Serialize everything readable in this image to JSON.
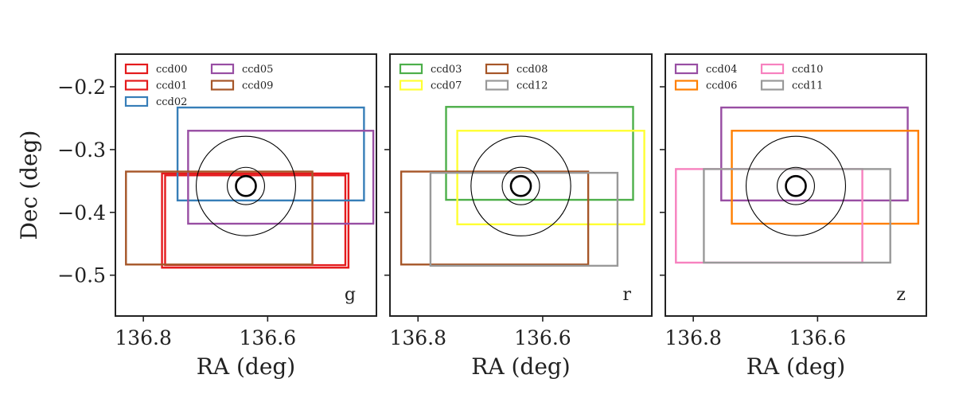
{
  "chart_data": [
    {
      "type": "scatter",
      "panel": "g",
      "band_label": "g",
      "xlabel": "RA (deg)",
      "ylabel": "Dec (deg)",
      "xlim": [
        136.845,
        136.425
      ],
      "ylim": [
        -0.565,
        -0.148
      ],
      "x_ticks": [
        136.8,
        136.6
      ],
      "x_tick_labels": [
        "136.8",
        "136.6"
      ],
      "y_ticks": [
        -0.2,
        -0.3,
        -0.4,
        -0.5
      ],
      "y_tick_labels": [
        "−0.2",
        "−0.3",
        "−0.4",
        "−0.5"
      ],
      "target": {
        "ra": 136.635,
        "dec": -0.358,
        "circle_radii_deg": [
          0.016,
          0.03,
          0.08
        ]
      },
      "legend": {
        "placement": "top-left",
        "columns": 2,
        "entries": [
          "ccd00",
          "ccd01",
          "ccd02",
          "ccd05",
          "ccd09"
        ]
      },
      "series": [
        {
          "name": "ccd00",
          "color": "#e41a1c",
          "ra": [
            136.77,
            136.47
          ],
          "dec": [
            -0.488,
            -0.338
          ]
        },
        {
          "name": "ccd01",
          "color": "#e41a1c",
          "ra": [
            136.765,
            136.475
          ],
          "dec": [
            -0.484,
            -0.341
          ]
        },
        {
          "name": "ccd02",
          "color": "#377eb8",
          "ra": [
            136.745,
            136.445
          ],
          "dec": [
            -0.381,
            -0.233
          ]
        },
        {
          "name": "ccd05",
          "color": "#984ea3",
          "ra": [
            136.728,
            136.43
          ],
          "dec": [
            -0.418,
            -0.27
          ]
        },
        {
          "name": "ccd09",
          "color": "#a65628",
          "ra": [
            136.828,
            136.528
          ],
          "dec": [
            -0.483,
            -0.335
          ]
        }
      ]
    },
    {
      "type": "scatter",
      "panel": "r",
      "band_label": "r",
      "xlabel": "RA (deg)",
      "ylabel": "",
      "xlim": [
        136.845,
        136.425
      ],
      "ylim": [
        -0.565,
        -0.148
      ],
      "x_ticks": [
        136.8,
        136.6
      ],
      "x_tick_labels": [
        "136.8",
        "136.6"
      ],
      "y_ticks": [
        -0.2,
        -0.3,
        -0.4,
        -0.5
      ],
      "y_tick_labels": [],
      "target": {
        "ra": 136.635,
        "dec": -0.358,
        "circle_radii_deg": [
          0.016,
          0.03,
          0.08
        ]
      },
      "legend": {
        "placement": "top-left",
        "columns": 2,
        "entries": [
          "ccd03",
          "ccd07",
          "ccd08",
          "ccd12"
        ]
      },
      "series": [
        {
          "name": "ccd03",
          "color": "#4daf4a",
          "ra": [
            136.755,
            136.455
          ],
          "dec": [
            -0.38,
            -0.232
          ]
        },
        {
          "name": "ccd07",
          "color": "#ffff33",
          "ra": [
            136.737,
            136.437
          ],
          "dec": [
            -0.419,
            -0.27
          ]
        },
        {
          "name": "ccd08",
          "color": "#a65628",
          "ra": [
            136.827,
            136.527
          ],
          "dec": [
            -0.483,
            -0.335
          ]
        },
        {
          "name": "ccd12",
          "color": "#999999",
          "ra": [
            136.78,
            136.48
          ],
          "dec": [
            -0.485,
            -0.337
          ]
        }
      ]
    },
    {
      "type": "scatter",
      "panel": "z",
      "band_label": "z",
      "xlabel": "RA (deg)",
      "ylabel": "",
      "xlim": [
        136.845,
        136.425
      ],
      "ylim": [
        -0.565,
        -0.148
      ],
      "x_ticks": [
        136.8,
        136.6
      ],
      "x_tick_labels": [
        "136.8",
        "136.6"
      ],
      "y_ticks": [
        -0.2,
        -0.3,
        -0.4,
        -0.5
      ],
      "y_tick_labels": [],
      "target": {
        "ra": 136.635,
        "dec": -0.358,
        "circle_radii_deg": [
          0.016,
          0.03,
          0.08
        ]
      },
      "legend": {
        "placement": "top-left",
        "columns": 2,
        "entries": [
          "ccd04",
          "ccd06",
          "ccd10",
          "ccd11"
        ]
      },
      "series": [
        {
          "name": "ccd04",
          "color": "#984ea3",
          "ra": [
            136.755,
            136.455
          ],
          "dec": [
            -0.381,
            -0.233
          ]
        },
        {
          "name": "ccd06",
          "color": "#ff7f00",
          "ra": [
            136.738,
            136.438
          ],
          "dec": [
            -0.418,
            -0.27
          ]
        },
        {
          "name": "ccd10",
          "color": "#f781bf",
          "ra": [
            136.828,
            136.528
          ],
          "dec": [
            -0.48,
            -0.331
          ]
        },
        {
          "name": "ccd11",
          "color": "#999999",
          "ra": [
            136.783,
            136.483
          ],
          "dec": [
            -0.48,
            -0.331
          ]
        }
      ]
    }
  ]
}
